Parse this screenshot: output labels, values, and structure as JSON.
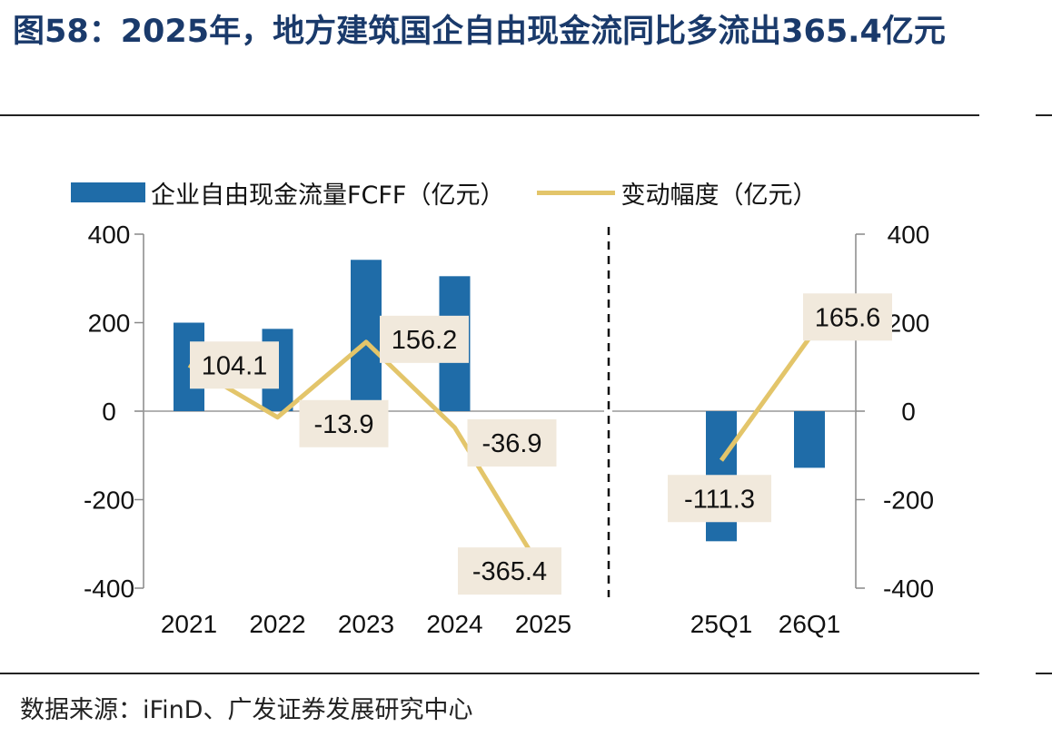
{
  "header": {
    "title": "图58：2025年，地方建筑国企自由现金流同比多流出365.4亿元"
  },
  "legend": {
    "bar_label": "企业自由现金流量FCFF（亿元）",
    "line_label": "变动幅度（亿元）"
  },
  "footer": {
    "source": "数据来源：iFinD、广发证券发展研究中心"
  },
  "colors": {
    "bar": "#1f6ca8",
    "line": "#e3c56a",
    "label_bg": "#f1e9dc"
  },
  "chart_data": [
    {
      "type": "bar",
      "panel": "annual",
      "categories": [
        "2021",
        "2022",
        "2023",
        "2024",
        "2025"
      ],
      "series": [
        {
          "name": "企业自由现金流量FCFF（亿元）",
          "type": "bar",
          "values": [
            200,
            186,
            342,
            305,
            null
          ]
        },
        {
          "name": "变动幅度（亿元）",
          "type": "line",
          "values": [
            104.1,
            -13.9,
            156.2,
            -36.9,
            -365.4
          ],
          "labels": [
            "104.1",
            "-13.9",
            "156.2",
            "-36.9",
            "-365.4"
          ]
        }
      ],
      "yticks": [
        "400",
        "200",
        "0",
        "-200",
        "-400"
      ],
      "ylim": [
        -400,
        400
      ],
      "yaxis_side": "left"
    },
    {
      "type": "bar",
      "panel": "quarterly",
      "categories": [
        "25Q1",
        "26Q1"
      ],
      "series": [
        {
          "name": "企业自由现金流量FCFF（亿元）",
          "type": "bar",
          "values": [
            -294,
            -128
          ]
        },
        {
          "name": "变动幅度（亿元）",
          "type": "line",
          "values": [
            -111.3,
            165.6
          ],
          "labels": [
            "-111.3",
            "165.6"
          ]
        }
      ],
      "yticks": [
        "400",
        "200",
        "0",
        "-200",
        "-400"
      ],
      "ylim": [
        -400,
        400
      ],
      "yaxis_side": "right"
    }
  ]
}
